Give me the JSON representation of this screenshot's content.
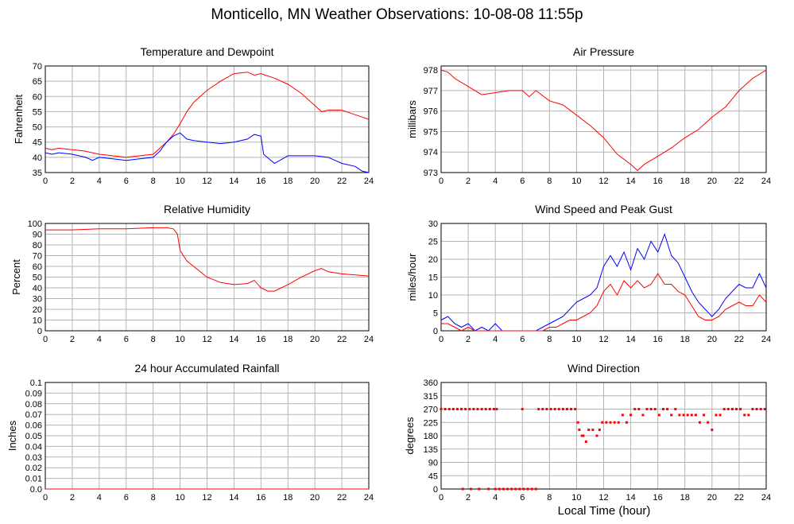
{
  "page": {
    "title": "Monticello, MN Weather Observations: 10-08-08 11:55p",
    "xlabel": "Local Time (hour)"
  },
  "chart_data": [
    {
      "key": "temp",
      "type": "line",
      "title": "Temperature and Dewpoint",
      "ylabel": "Fahrenheit",
      "xlabel": "",
      "xlim": [
        0,
        24
      ],
      "ylim": [
        35,
        70
      ],
      "xticks": [
        0,
        2,
        4,
        6,
        8,
        10,
        12,
        14,
        16,
        18,
        20,
        22,
        24
      ],
      "yticks": [
        35,
        40,
        45,
        50,
        55,
        60,
        65,
        70
      ],
      "ytick_labels": [
        "35",
        "40",
        "45",
        "50",
        "55",
        "60",
        "65",
        "70"
      ],
      "grid": true,
      "series": [
        {
          "color": "#ff0000",
          "x": [
            0,
            0.5,
            1,
            2,
            3,
            4,
            5,
            6,
            7,
            8,
            8.5,
            9,
            9.5,
            10,
            10.5,
            11,
            12,
            13,
            14,
            15,
            15.5,
            16,
            17,
            18,
            19,
            20,
            20.5,
            21,
            22,
            23,
            24
          ],
          "y": [
            43,
            42.5,
            43,
            42.5,
            42,
            41,
            40.5,
            40,
            40.5,
            41,
            43,
            45,
            47.5,
            51,
            55,
            58,
            62,
            65,
            67.5,
            68,
            67,
            67.5,
            66,
            64,
            61,
            57,
            55,
            55.5,
            55.5,
            54,
            52.5
          ]
        },
        {
          "color": "#0000ff",
          "x": [
            0,
            0.5,
            1,
            2,
            3,
            3.5,
            4,
            5,
            6,
            7,
            8,
            8.5,
            9,
            9.5,
            10,
            10.5,
            11,
            12,
            13,
            14,
            15,
            15.5,
            16,
            16.2,
            17,
            18,
            19,
            20,
            21,
            21.5,
            22,
            23,
            23.5,
            24
          ],
          "y": [
            41.5,
            41,
            41.5,
            41,
            40,
            39,
            40,
            39.5,
            39,
            39.5,
            40,
            42,
            45,
            47,
            48,
            46,
            45.5,
            45,
            44.5,
            45,
            46,
            47.5,
            47,
            41,
            38,
            40.5,
            40.5,
            40.5,
            40,
            39,
            38,
            37,
            35.5,
            35
          ]
        }
      ]
    },
    {
      "key": "pressure",
      "type": "line",
      "title": "Air Pressure",
      "ylabel": "millibars",
      "xlabel": "",
      "xlim": [
        0,
        24
      ],
      "ylim": [
        973,
        978.2
      ],
      "xticks": [
        0,
        2,
        4,
        6,
        8,
        10,
        12,
        14,
        16,
        18,
        20,
        22,
        24
      ],
      "yticks": [
        973,
        974,
        975,
        976,
        977,
        978
      ],
      "ytick_labels": [
        "973",
        "974",
        "975",
        "976",
        "977",
        "978"
      ],
      "grid": true,
      "series": [
        {
          "color": "#ff0000",
          "x": [
            0,
            0.5,
            1,
            2,
            3,
            4,
            5,
            6,
            6.5,
            7,
            8,
            9,
            10,
            11,
            12,
            13,
            14,
            14.5,
            15,
            16,
            17,
            18,
            19,
            20,
            21,
            22,
            23,
            24
          ],
          "y": [
            978,
            977.9,
            977.6,
            977.2,
            976.8,
            976.9,
            977,
            977,
            976.7,
            977,
            976.5,
            976.3,
            975.8,
            975.3,
            974.7,
            973.9,
            973.4,
            973.1,
            973.4,
            973.8,
            974.2,
            974.7,
            975.1,
            975.7,
            976.2,
            977,
            977.6,
            978
          ]
        }
      ]
    },
    {
      "key": "rh",
      "type": "line",
      "title": "Relative Humidity",
      "ylabel": "Percent",
      "xlabel": "",
      "xlim": [
        0,
        24
      ],
      "ylim": [
        0,
        100
      ],
      "xticks": [
        0,
        2,
        4,
        6,
        8,
        10,
        12,
        14,
        16,
        18,
        20,
        22,
        24
      ],
      "yticks": [
        0,
        10,
        20,
        30,
        40,
        50,
        60,
        70,
        80,
        90,
        100
      ],
      "ytick_labels": [
        "0",
        "10",
        "20",
        "30",
        "40",
        "50",
        "60",
        "70",
        "80",
        "90",
        "100"
      ],
      "grid": true,
      "series": [
        {
          "color": "#ff0000",
          "x": [
            0,
            2,
            4,
            6,
            8,
            9,
            9.5,
            9.8,
            10,
            10.5,
            11,
            12,
            13,
            14,
            15,
            15.5,
            16,
            16.5,
            17,
            18,
            19,
            20,
            20.5,
            21,
            22,
            23,
            24
          ],
          "y": [
            94,
            94,
            95,
            95,
            96,
            96,
            95,
            90,
            75,
            65,
            60,
            50,
            45,
            43,
            44,
            47,
            40,
            37,
            37,
            43,
            50,
            56,
            58,
            55,
            53,
            52,
            51
          ]
        }
      ]
    },
    {
      "key": "wind",
      "type": "line",
      "title": "Wind Speed and Peak Gust",
      "ylabel": "miles/hour",
      "xlabel": "",
      "xlim": [
        0,
        24
      ],
      "ylim": [
        0,
        30
      ],
      "xticks": [
        0,
        2,
        4,
        6,
        8,
        10,
        12,
        14,
        16,
        18,
        20,
        22,
        24
      ],
      "yticks": [
        0,
        5,
        10,
        15,
        20,
        25,
        30
      ],
      "ytick_labels": [
        "0",
        "5",
        "10",
        "15",
        "20",
        "25",
        "30"
      ],
      "grid": true,
      "series": [
        {
          "color": "#0000ff",
          "x": [
            0,
            0.5,
            1,
            1.5,
            2,
            2.5,
            3,
            3.5,
            4,
            4.5,
            5,
            6,
            6.5,
            7,
            7.5,
            8,
            8.5,
            9,
            9.5,
            10,
            10.5,
            11,
            11.5,
            12,
            12.5,
            13,
            13.5,
            14,
            14.5,
            15,
            15.5,
            16,
            16.5,
            17,
            17.5,
            18,
            18.5,
            19,
            19.5,
            20,
            20.5,
            21,
            21.5,
            22,
            22.5,
            23,
            23.5,
            24
          ],
          "y": [
            3,
            4,
            2,
            1,
            2,
            0,
            1,
            0,
            2,
            0,
            0,
            0,
            0,
            0,
            1,
            2,
            3,
            4,
            6,
            8,
            9,
            10,
            12,
            18,
            21,
            18,
            22,
            17,
            23,
            20,
            25,
            22,
            27,
            21,
            19,
            15,
            11,
            8,
            6,
            4,
            6,
            9,
            11,
            13,
            12,
            12,
            16,
            12
          ]
        },
        {
          "color": "#ff0000",
          "x": [
            0,
            0.5,
            1,
            1.5,
            2,
            2.5,
            3,
            3.5,
            4,
            5,
            6,
            7,
            7.5,
            8,
            8.5,
            9,
            9.5,
            10,
            10.5,
            11,
            11.5,
            12,
            12.5,
            13,
            13.5,
            14,
            14.5,
            15,
            15.5,
            16,
            16.5,
            17,
            17.5,
            18,
            18.5,
            19,
            19.5,
            20,
            20.5,
            21,
            21.5,
            22,
            22.5,
            23,
            23.5,
            24
          ],
          "y": [
            2,
            2,
            1,
            0,
            1,
            0,
            0,
            0,
            0,
            0,
            0,
            0,
            0,
            1,
            1,
            2,
            3,
            3,
            4,
            5,
            7,
            11,
            13,
            10,
            14,
            12,
            14,
            12,
            13,
            16,
            13,
            13,
            11,
            10,
            7,
            4,
            3,
            3,
            4,
            6,
            7,
            8,
            7,
            7,
            10,
            8
          ]
        }
      ]
    },
    {
      "key": "rain",
      "type": "line",
      "title": "24 hour Accumulated Rainfall",
      "ylabel": "Inches",
      "xlabel": "",
      "xlim": [
        0,
        24
      ],
      "ylim": [
        0,
        0.1
      ],
      "xticks": [
        0,
        2,
        4,
        6,
        8,
        10,
        12,
        14,
        16,
        18,
        20,
        22,
        24
      ],
      "yticks": [
        0,
        0.01,
        0.02,
        0.03,
        0.04,
        0.05,
        0.06,
        0.07,
        0.08,
        0.09,
        0.1
      ],
      "ytick_labels": [
        "0.0",
        "0.01",
        "0.02",
        "0.03",
        "0.04",
        "0.05",
        "0.06",
        "0.07",
        "0.08",
        "0.09",
        "0.1"
      ],
      "grid": true,
      "series": [
        {
          "color": "#ff0000",
          "x": [
            0,
            24
          ],
          "y": [
            0,
            0
          ]
        }
      ]
    },
    {
      "key": "dir",
      "type": "scatter",
      "title": "Wind Direction",
      "ylabel": "degrees",
      "xlabel": "",
      "xlim": [
        0,
        24
      ],
      "ylim": [
        0,
        360
      ],
      "xticks": [
        0,
        2,
        4,
        6,
        8,
        10,
        12,
        14,
        16,
        18,
        20,
        22,
        24
      ],
      "yticks": [
        0,
        45,
        90,
        135,
        180,
        225,
        270,
        315,
        360
      ],
      "ytick_labels": [
        "0",
        "45",
        "90",
        "135",
        "180",
        "225",
        "270",
        "315",
        "360"
      ],
      "grid": true,
      "series": [
        {
          "color": "#ff0000",
          "x": [
            0,
            0.3,
            0.6,
            0.9,
            1.2,
            1.5,
            1.8,
            2.1,
            2.4,
            2.7,
            3.0,
            3.3,
            3.6,
            3.9,
            4.1,
            1.6,
            2.2,
            2.8,
            3.5,
            4.0,
            4.3,
            4.6,
            4.9,
            5.2,
            5.5,
            5.8,
            6.1,
            6.4,
            6.7,
            7.0,
            6.0,
            7.2,
            7.5,
            7.8,
            8.1,
            8.4,
            8.7,
            9.0,
            9.3,
            9.6,
            9.9,
            10.1,
            10.2,
            10.4,
            10.5,
            10.7,
            10.9,
            11.2,
            11.5,
            11.7,
            11.9,
            12.2,
            12.5,
            12.8,
            13.1,
            13.4,
            13.7,
            14.0,
            14.3,
            14.6,
            14.9,
            15.2,
            15.5,
            15.8,
            16.1,
            16.4,
            16.7,
            17.0,
            17.3,
            17.6,
            17.9,
            18.2,
            18.5,
            18.8,
            19.1,
            19.4,
            19.7,
            20.0,
            20.3,
            20.6,
            20.9,
            21.2,
            21.5,
            21.8,
            22.1,
            22.4,
            22.7,
            23.0,
            23.3,
            23.6,
            23.9
          ],
          "y": [
            270,
            270,
            270,
            270,
            270,
            270,
            270,
            270,
            270,
            270,
            270,
            270,
            270,
            270,
            270,
            0,
            0,
            0,
            0,
            0,
            0,
            0,
            0,
            0,
            0,
            0,
            0,
            0,
            0,
            0,
            270,
            270,
            270,
            270,
            270,
            270,
            270,
            270,
            270,
            270,
            270,
            225,
            200,
            180,
            180,
            160,
            200,
            200,
            180,
            200,
            225,
            225,
            225,
            225,
            225,
            250,
            225,
            250,
            270,
            270,
            250,
            270,
            270,
            270,
            250,
            270,
            270,
            250,
            270,
            250,
            250,
            250,
            250,
            250,
            225,
            250,
            225,
            200,
            250,
            250,
            270,
            270,
            270,
            270,
            270,
            250,
            250,
            270,
            270,
            270,
            270
          ]
        }
      ]
    }
  ]
}
